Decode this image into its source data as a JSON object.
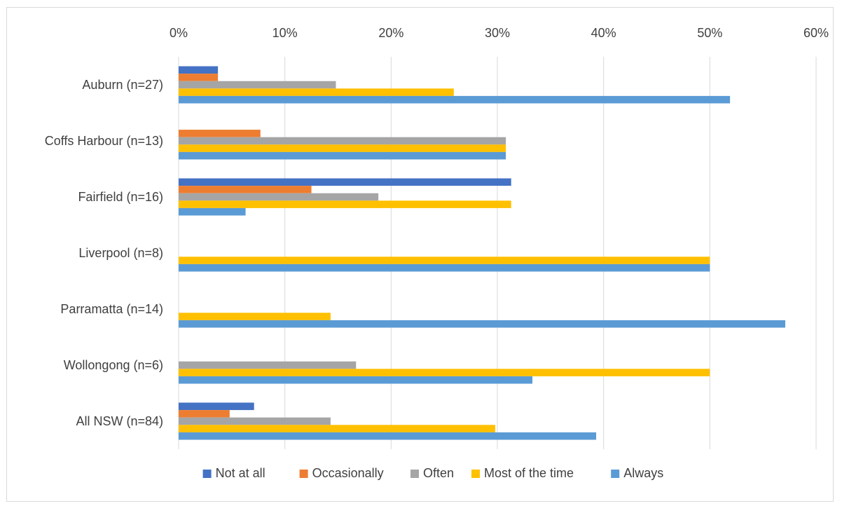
{
  "chart_data": {
    "type": "bar",
    "orientation": "horizontal",
    "title": "",
    "xlabel": "",
    "ylabel": "",
    "xlim": [
      0,
      60
    ],
    "x_ticks": [
      "0%",
      "10%",
      "20%",
      "30%",
      "40%",
      "50%",
      "60%"
    ],
    "x_axis_position": "top",
    "grid": true,
    "legend_position": "bottom",
    "categories": [
      "Auburn (n=27)",
      "Coffs Harbour (n=13)",
      "Fairfield (n=16)",
      "Liverpool (n=8)",
      "Parramatta (n=14)",
      "Wollongong (n=6)",
      "All NSW (n=84)"
    ],
    "series": [
      {
        "name": "Not at all",
        "color": "#4472c4",
        "values": [
          3.7,
          0,
          31.3,
          0,
          0,
          0,
          7.1
        ]
      },
      {
        "name": "Occasionally",
        "color": "#ed7d31",
        "values": [
          3.7,
          7.7,
          12.5,
          0,
          0,
          0,
          4.8
        ]
      },
      {
        "name": "Often",
        "color": "#a5a5a5",
        "values": [
          14.8,
          30.8,
          18.8,
          0,
          0,
          16.7,
          14.3
        ]
      },
      {
        "name": "Most of the time",
        "color": "#ffc000",
        "values": [
          25.9,
          30.8,
          31.3,
          50.0,
          14.3,
          50.0,
          29.8
        ]
      },
      {
        "name": "Always",
        "color": "#5b9bd5",
        "values": [
          51.9,
          30.8,
          6.3,
          50.0,
          57.1,
          33.3,
          39.3
        ]
      }
    ]
  }
}
